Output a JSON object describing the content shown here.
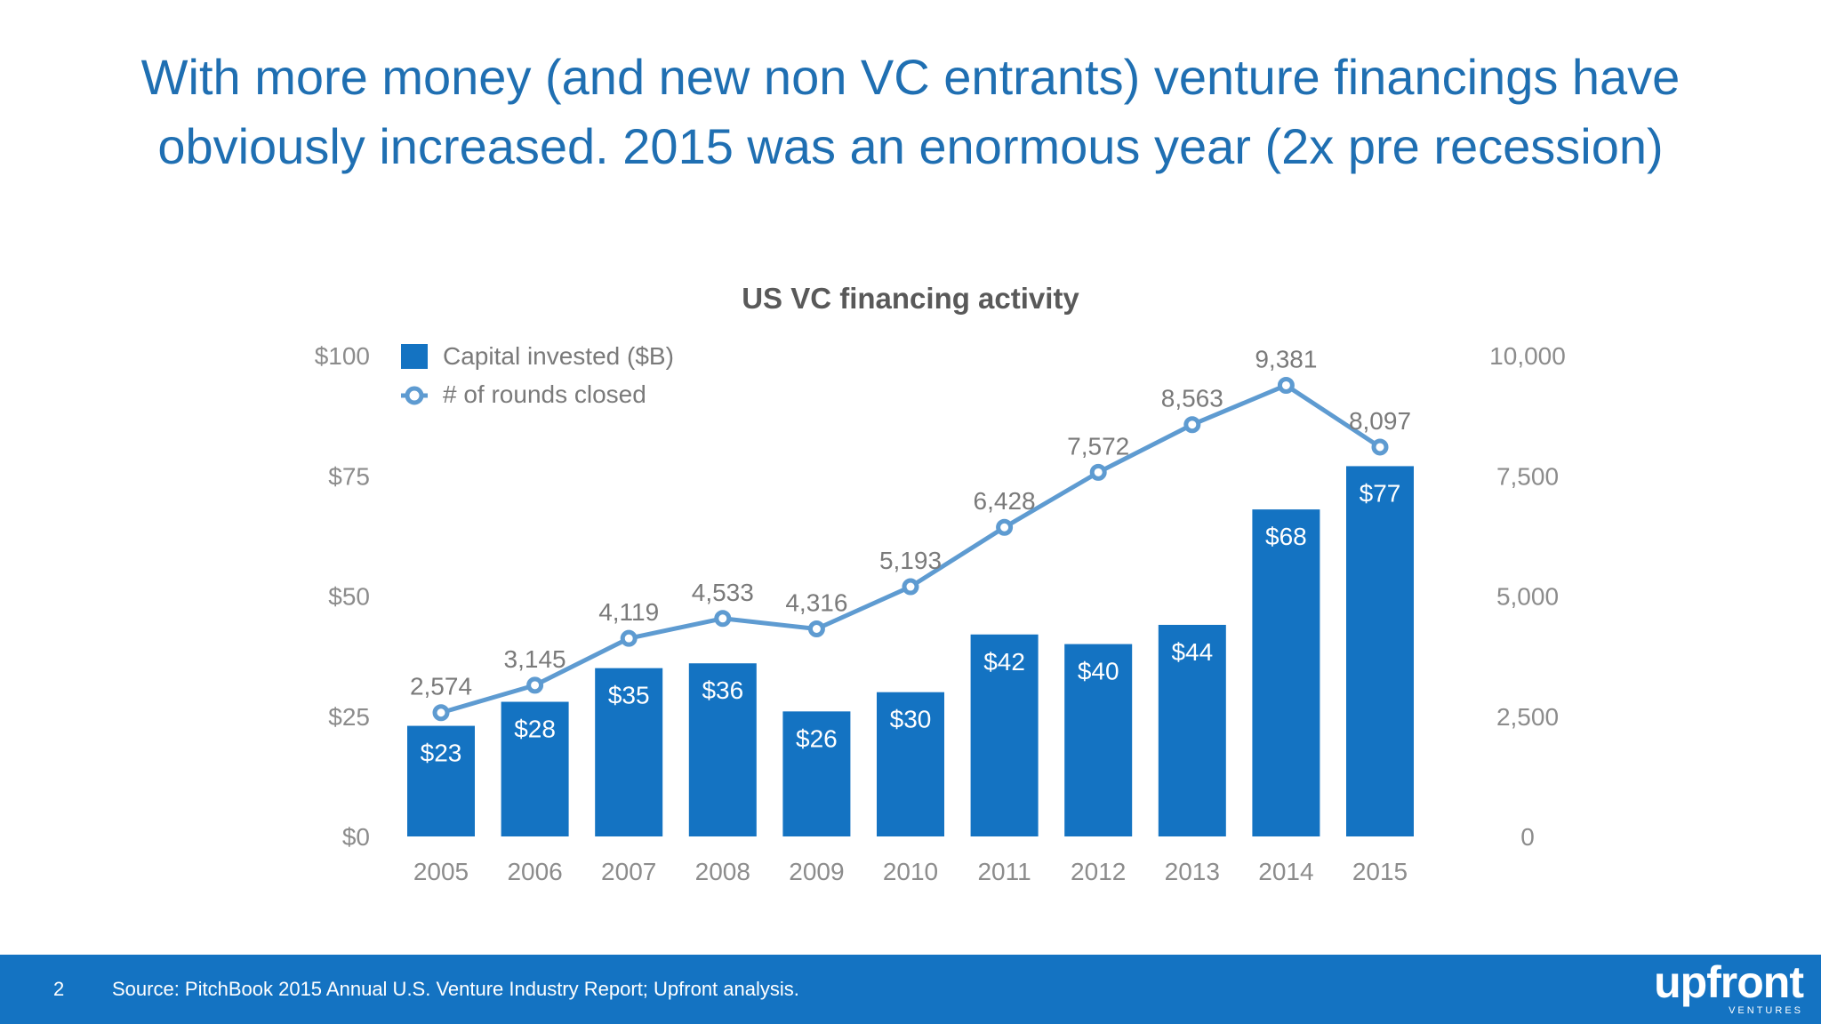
{
  "slide": {
    "title_line1": "With more money (and new non VC entrants) venture financings have",
    "title_line2": "obviously increased. 2015 was an enormous year (2x pre recession)",
    "page_number": "2",
    "source": "Source: PitchBook 2015 Annual U.S. Venture Industry Report; Upfront analysis.",
    "logo_text": "upfront",
    "logo_subtext": "VENTURES"
  },
  "colors": {
    "title": "#1f6fb2",
    "bar": "#1473c2",
    "line": "#5e9bd1",
    "footer": "#1473c2",
    "axis_text": "#8c8c8c",
    "label_text": "#7a7a7a",
    "chart_title": "#595959"
  },
  "chart_data": {
    "type": "bar",
    "title": "US VC financing activity",
    "categories": [
      "2005",
      "2006",
      "2007",
      "2008",
      "2009",
      "2010",
      "2011",
      "2012",
      "2013",
      "2014",
      "2015"
    ],
    "series": [
      {
        "name": "Capital invested ($B)",
        "type": "bar",
        "axis": "left",
        "values": [
          23,
          28,
          35,
          36,
          26,
          30,
          42,
          40,
          44,
          68,
          77
        ],
        "labels": [
          "$23",
          "$28",
          "$35",
          "$36",
          "$26",
          "$30",
          "$42",
          "$40",
          "$44",
          "$68",
          "$77"
        ]
      },
      {
        "name": "# of rounds closed",
        "type": "line",
        "axis": "right",
        "values": [
          2574,
          3145,
          4119,
          4533,
          4316,
          5193,
          6428,
          7572,
          8563,
          9381,
          8097
        ],
        "labels": [
          "2,574",
          "3,145",
          "4,119",
          "4,533",
          "4,316",
          "5,193",
          "6,428",
          "7,572",
          "8,563",
          "9,381",
          "8,097"
        ]
      }
    ],
    "y_left": {
      "range": [
        0,
        100
      ],
      "ticks": [
        0,
        25,
        50,
        75,
        100
      ],
      "tick_labels": [
        "$0",
        "$25",
        "$50",
        "$75",
        "$100"
      ]
    },
    "y_right": {
      "range": [
        0,
        10000
      ],
      "ticks": [
        0,
        2500,
        5000,
        7500,
        10000
      ],
      "tick_labels": [
        "0",
        "2,500",
        "5,000",
        "7,500",
        "10,000"
      ]
    },
    "grid": false,
    "legend_position": "top-left"
  }
}
